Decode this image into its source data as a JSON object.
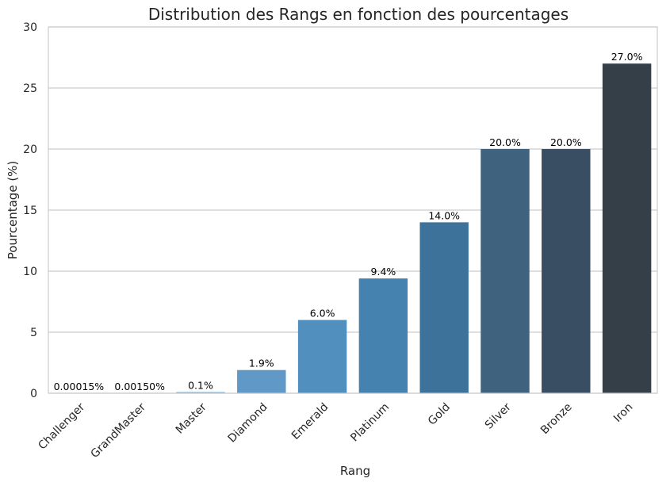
{
  "chart_data": {
    "type": "bar",
    "title": "Distribution des Rangs en fonction des pourcentages",
    "xlabel": "Rang",
    "ylabel": "Pourcentage (%)",
    "categories": [
      "Challenger",
      "GrandMaster",
      "Master",
      "Diamond",
      "Emerald",
      "Platinum",
      "Gold",
      "Silver",
      "Bronze",
      "Iron"
    ],
    "values": [
      0.00015,
      0.0015,
      0.1,
      1.9,
      6.0,
      9.4,
      14.0,
      20.0,
      20.0,
      27.0
    ],
    "data_labels": [
      "0.00015%",
      "0.00150%",
      "0.1%",
      "1.9%",
      "6.0%",
      "9.4%",
      "14.0%",
      "20.0%",
      "20.0%",
      "27.0%"
    ],
    "colors": [
      "#a9c9e6",
      "#8fbde0",
      "#78afda",
      "#6099c8",
      "#5190be",
      "#4582b0",
      "#3d729a",
      "#3f627e",
      "#3a4e63",
      "#343f47"
    ],
    "ylim": [
      0,
      30
    ],
    "yticks": [
      "0",
      "5",
      "10",
      "15",
      "20",
      "25",
      "30"
    ],
    "grid": true,
    "legend": "none"
  }
}
